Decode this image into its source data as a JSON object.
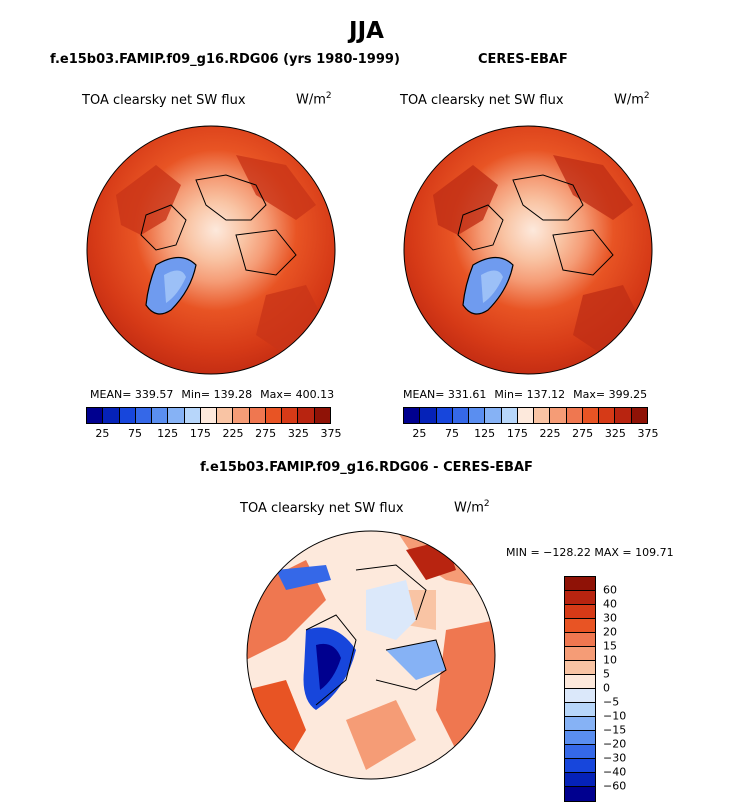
{
  "season": "JJA",
  "panels": [
    {
      "title": "f.e15b03.FAMIP.f09_g16.RDG06 (yrs 1980-1999)",
      "field": "TOA clearsky net SW flux",
      "units": "W/m",
      "units_sup": "2",
      "stats": {
        "mean": "MEAN= 339.57",
        "min": "Min= 139.28",
        "max": "Max= 400.13"
      },
      "ice_shade": "#e85424",
      "land_shade": "#c93418"
    },
    {
      "title": "CERES-EBAF",
      "field": "TOA clearsky net SW flux",
      "units": "W/m",
      "units_sup": "2",
      "stats": {
        "mean": "MEAN= 331.61",
        "min": "Min= 137.12",
        "max": "Max= 399.25"
      },
      "ice_shade": "#e24a1e",
      "land_shade": "#c02e15"
    }
  ],
  "diff": {
    "title": "f.e15b03.FAMIP.f09_g16.RDG06 - CERES-EBAF",
    "field": "TOA clearsky net SW flux",
    "units": "W/m",
    "units_sup": "2",
    "minmax": "MIN = −128.22 MAX = 109.71"
  },
  "colorbar_top": {
    "colors": [
      "#00008f",
      "#0522b8",
      "#1746dc",
      "#3568e8",
      "#5a8ef0",
      "#86b2f5",
      "#b7d6fa",
      "#fde9dc",
      "#f9c4a4",
      "#f59c76",
      "#ef7750",
      "#e85424",
      "#d63a17",
      "#b82410",
      "#8f1206"
    ],
    "ticks": [
      "25",
      "75",
      "125",
      "175",
      "225",
      "275",
      "325",
      "375"
    ]
  },
  "colorbar_diff": {
    "colors": [
      "#8f1206",
      "#b82410",
      "#d63a17",
      "#e85424",
      "#ef7750",
      "#f59c76",
      "#f9c4a4",
      "#fde9dc",
      "#dbe8fa",
      "#b7d6fa",
      "#86b2f5",
      "#5a8ef0",
      "#3568e8",
      "#1746dc",
      "#0522b8",
      "#00008f"
    ],
    "labels": [
      "60",
      "40",
      "30",
      "20",
      "15",
      "10",
      "5",
      "0",
      "−5",
      "−10",
      "−15",
      "−20",
      "−30",
      "−40",
      "−60"
    ]
  }
}
